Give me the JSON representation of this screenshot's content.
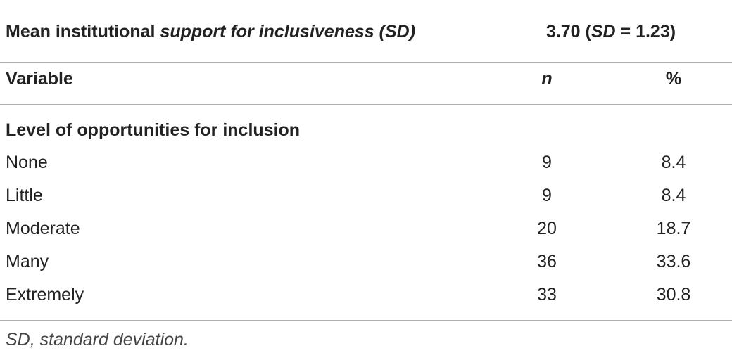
{
  "header": {
    "label": [
      "Mean institutional ",
      "support for inclusiveness (SD)"
    ],
    "value": [
      "3.70 (",
      "SD",
      " = 1.23)"
    ]
  },
  "columns": [
    "Variable",
    "n",
    "%"
  ],
  "section": "Level of opportunities for inclusion",
  "rows": [
    [
      "None",
      9,
      8.4
    ],
    [
      "Little",
      9,
      8.4
    ],
    [
      "Moderate",
      20,
      18.7
    ],
    [
      "Many",
      36,
      33.6
    ],
    [
      "Extremely",
      33,
      30.8
    ]
  ],
  "footnote": "SD, standard deviation."
}
